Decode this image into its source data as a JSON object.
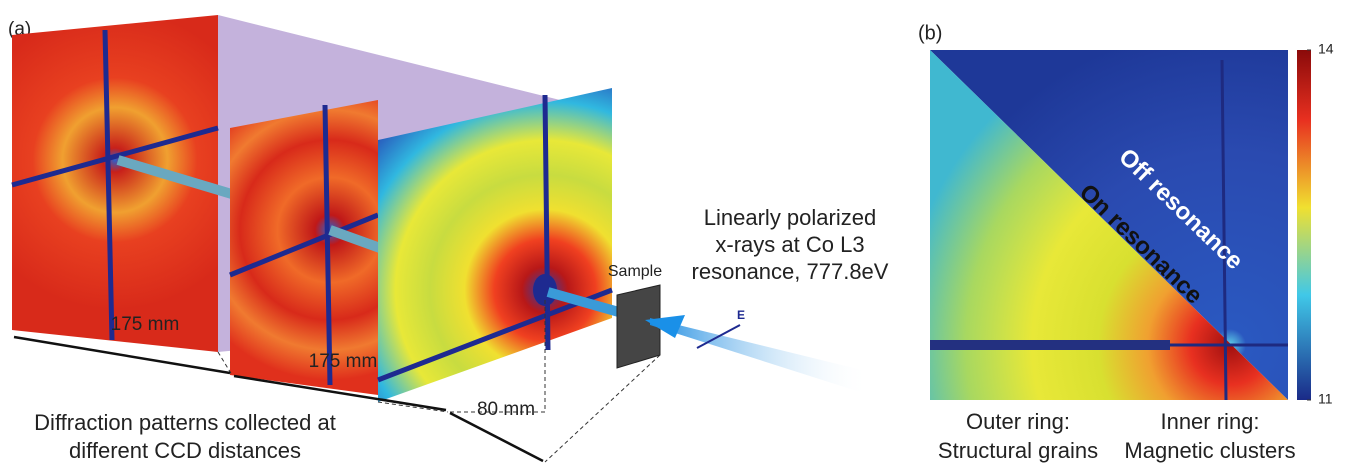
{
  "panel_a": {
    "label": "(a)",
    "distances": [
      "175 mm",
      "175 mm",
      "80 mm"
    ],
    "sample": "Sample",
    "beam_label": [
      "Linearly polarized",
      "x-rays at Co L3",
      "resonance, 777.8eV"
    ],
    "field_label": "E",
    "caption": [
      "Diffraction patterns collected at",
      "different CCD distances"
    ]
  },
  "panel_b": {
    "label": "(b)",
    "off": "Off resonance",
    "on": "On resonance",
    "colorbar": {
      "lim": [
        11,
        14
      ],
      "ticks": [
        11,
        14
      ]
    },
    "outer": [
      "Outer ring:",
      "Structural grains"
    ],
    "inner": [
      "Inner ring:",
      "Magnetic clusters"
    ]
  }
}
